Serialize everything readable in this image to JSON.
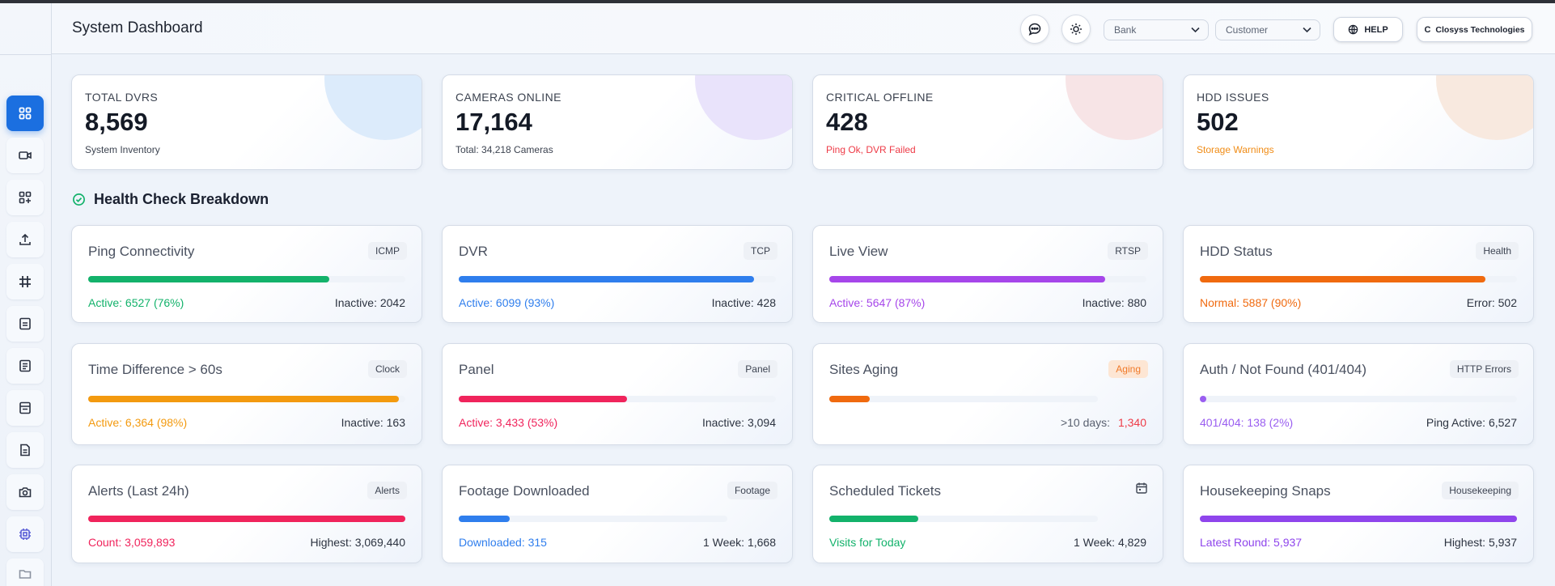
{
  "header": {
    "title": "System Dashboard",
    "bank_select": "Bank",
    "customer_select": "Customer",
    "help_label": "HELP",
    "company_initial": "C",
    "company_label": "Closyss Technologies"
  },
  "sidebar": {
    "items": [
      {
        "icon": "dashboard-grid-icon",
        "active": true
      },
      {
        "icon": "video-camera-icon"
      },
      {
        "icon": "apps-add-icon"
      },
      {
        "icon": "upload-icon"
      },
      {
        "icon": "hash-grid-icon"
      },
      {
        "icon": "report-icon"
      },
      {
        "icon": "document-list-icon"
      },
      {
        "icon": "calendar-sheet-icon"
      },
      {
        "icon": "file-icon"
      },
      {
        "icon": "camera-icon"
      },
      {
        "icon": "chip-icon"
      },
      {
        "icon": "folder-icon"
      }
    ]
  },
  "stats": [
    {
      "label": "TOTAL DVRS",
      "value": "8,569",
      "sub": "System Inventory",
      "sub_color": "#3c4350",
      "blob": "#dcebfb"
    },
    {
      "label": "CAMERAS ONLINE",
      "value": "17,164",
      "sub": "Total: 34,218 Cameras",
      "sub_color": "#3c4350",
      "blob": "#e9e3fb"
    },
    {
      "label": "CRITICAL OFFLINE",
      "value": "428",
      "sub": "Ping Ok, DVR Failed",
      "sub_color": "#ee3b47",
      "blob": "#f7e4e6"
    },
    {
      "label": "HDD ISSUES",
      "value": "502",
      "sub": "Storage Warnings",
      "sub_color": "#f08c16",
      "blob": "#f8e9df"
    }
  ],
  "section": {
    "title": "Health Check Breakdown"
  },
  "health": [
    {
      "title": "Ping Connectivity",
      "badge": "ICMP",
      "level": 0.76,
      "color": "#13b26b",
      "left": "Active: 6527 (76%)",
      "right": "Inactive: 2042"
    },
    {
      "title": "DVR",
      "badge": "TCP",
      "level": 0.93,
      "color": "#2f7eed",
      "left": "Active: 6099 (93%)",
      "right": "Inactive: 428"
    },
    {
      "title": "Live View",
      "badge": "RTSP",
      "level": 0.87,
      "color": "#a646ea",
      "left": "Active: 5647 (87%)",
      "right": "Inactive: 880"
    },
    {
      "title": "HDD Status",
      "badge": "Health",
      "level": 0.9,
      "color": "#f06a0f",
      "left": "Normal: 5887 (90%)",
      "right": "Error: 502"
    },
    {
      "title": "Time Difference > 60s",
      "badge": "Clock",
      "level": 0.98,
      "color": "#f39a0f",
      "left": "Active: 6,364 (98%)",
      "right": "Inactive: 163"
    },
    {
      "title": "Panel",
      "badge": "Panel",
      "level": 0.53,
      "color": "#f0245c",
      "left": "Active: 3,433 (53%)",
      "right": "Inactive: 3,094"
    },
    {
      "title": "Sites Aging",
      "badge": "Aging",
      "level": 0.15,
      "color": "#f06a0f",
      "left": "",
      "right": ">10 days:",
      "right_value": "1,340"
    },
    {
      "title": "Auth / Not Found (401/404)",
      "badge": "HTTP Errors",
      "level": 0.02,
      "color": "#9a5ef0",
      "left": "401/404: 138 (2%)",
      "right": "Ping Active: 6,527"
    },
    {
      "title": "Alerts (Last 24h)",
      "badge": "Alerts",
      "level": 1.0,
      "color": "#f0245c",
      "left": "Count: 3,059,893",
      "right": "Highest: 3,069,440"
    },
    {
      "title": "Footage Downloaded",
      "badge": "Footage",
      "level": 0.19,
      "color": "#2f7eed",
      "left": "Downloaded: 315",
      "right": "1 Week: 1,668"
    },
    {
      "title": "Scheduled Tickets",
      "badge": "",
      "level": 0.33,
      "color": "#13b26b",
      "left": "Visits for Today",
      "right": "1 Week: 4,829"
    },
    {
      "title": "Housekeeping Snaps",
      "badge": "Housekeeping",
      "level": 1.0,
      "color": "#8f45ec",
      "left": "Latest Round: 5,937",
      "right": "Highest: 5,937"
    }
  ]
}
